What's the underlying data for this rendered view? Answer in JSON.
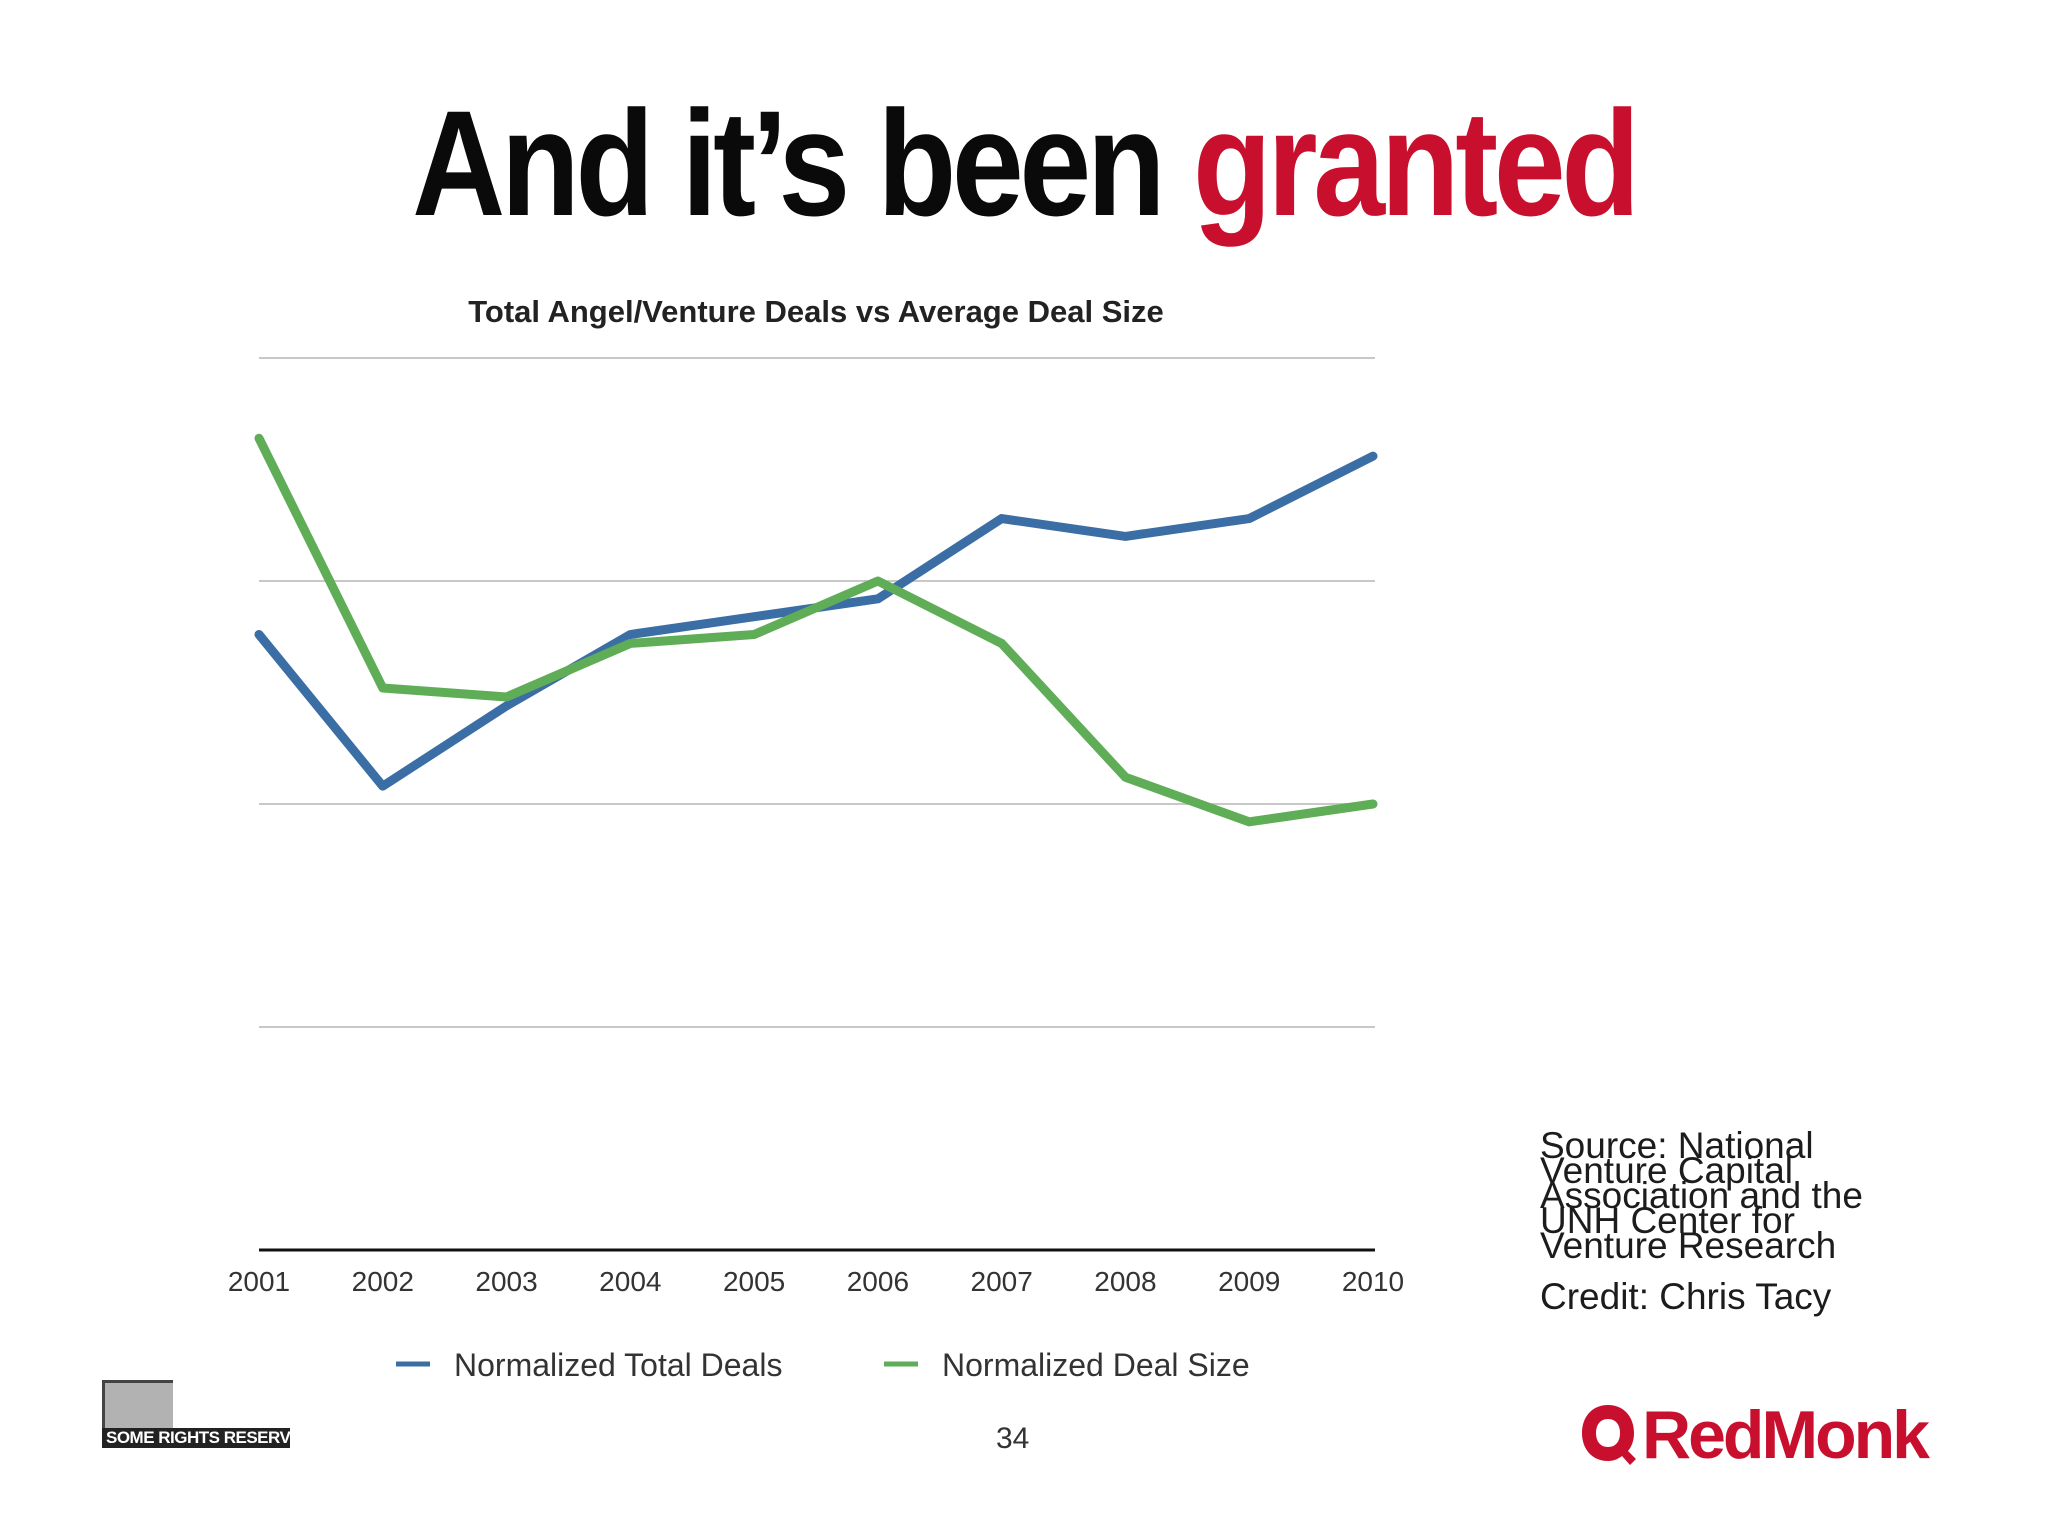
{
  "slide": {
    "title_main": "And it’s been ",
    "title_accent": "granted",
    "accent_color": "#c8102e",
    "source": "Source: National Venture Capital Association and the UNH Center for Venture Research",
    "credit": "Credit: Chris Tacy",
    "page_number": "34",
    "cc_badge": "SOME RIGHTS RESERVED",
    "logo": "RedMonk",
    "logo_icon": "redmonk-logo-icon"
  },
  "chart_data": {
    "type": "line",
    "title": "Total Angel/Venture Deals vs Average Deal Size",
    "x": [
      "2001",
      "2002",
      "2003",
      "2004",
      "2005",
      "2006",
      "2007",
      "2008",
      "2009",
      "2010"
    ],
    "ylim": [
      0,
      1
    ],
    "gridlines": [
      0.25,
      0.5,
      0.75,
      1.0
    ],
    "grid": true,
    "legend_position": "bottom",
    "series": [
      {
        "name": "Normalized Total Deals",
        "color": "#3a6ea5",
        "values": [
          0.69,
          0.52,
          0.61,
          0.69,
          0.71,
          0.73,
          0.82,
          0.8,
          0.82,
          0.89
        ]
      },
      {
        "name": "Normalized Deal Size",
        "color": "#5fad56",
        "values": [
          0.91,
          0.63,
          0.62,
          0.68,
          0.69,
          0.75,
          0.68,
          0.53,
          0.48,
          0.5
        ]
      }
    ]
  }
}
